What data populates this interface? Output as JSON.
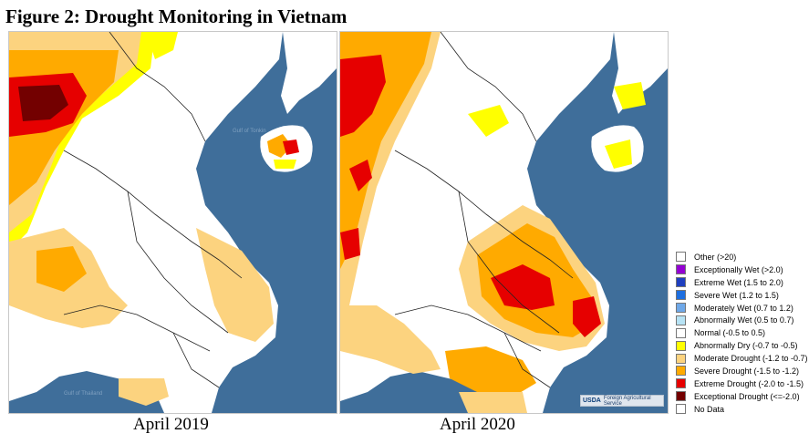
{
  "figure": {
    "title": "Figure 2: Drought Monitoring in Vietnam"
  },
  "maps": [
    {
      "caption": "April 2019",
      "sea_label_1": "Gulf of Tonkin",
      "sea_label_2": "Gulf of Thailand"
    },
    {
      "caption": "April 2020"
    }
  ],
  "logo": {
    "mark": "USDA",
    "text": "Foreign Agricultural Service"
  },
  "legend": {
    "items": [
      {
        "label": "Other (>20)",
        "color": "#ffffff"
      },
      {
        "label": "Exceptionally Wet (>2.0)",
        "color": "#9400d3"
      },
      {
        "label": "Extreme Wet (1.5 to 2.0)",
        "color": "#1f3fbf"
      },
      {
        "label": "Severe Wet (1.2 to 1.5)",
        "color": "#1e6fe0"
      },
      {
        "label": "Moderately Wet (0.7 to 1.2)",
        "color": "#6fa8e8"
      },
      {
        "label": "Abnormally Wet (0.5 to 0.7)",
        "color": "#b7e3f5"
      },
      {
        "label": "Normal (-0.5 to 0.5)",
        "color": "#ffffff"
      },
      {
        "label": "Abnormally Dry (-0.7 to -0.5)",
        "color": "#ffff00"
      },
      {
        "label": "Moderate Drought (-1.2 to -0.7)",
        "color": "#fcd37f"
      },
      {
        "label": "Severe Drought (-1.5 to -1.2)",
        "color": "#ffaa00"
      },
      {
        "label": "Extreme Drought (-2.0 to -1.5)",
        "color": "#e60000"
      },
      {
        "label": "Exceptional Drought (<=-2.0)",
        "color": "#730000"
      },
      {
        "label": "No Data",
        "color": "#ffffff"
      }
    ]
  }
}
